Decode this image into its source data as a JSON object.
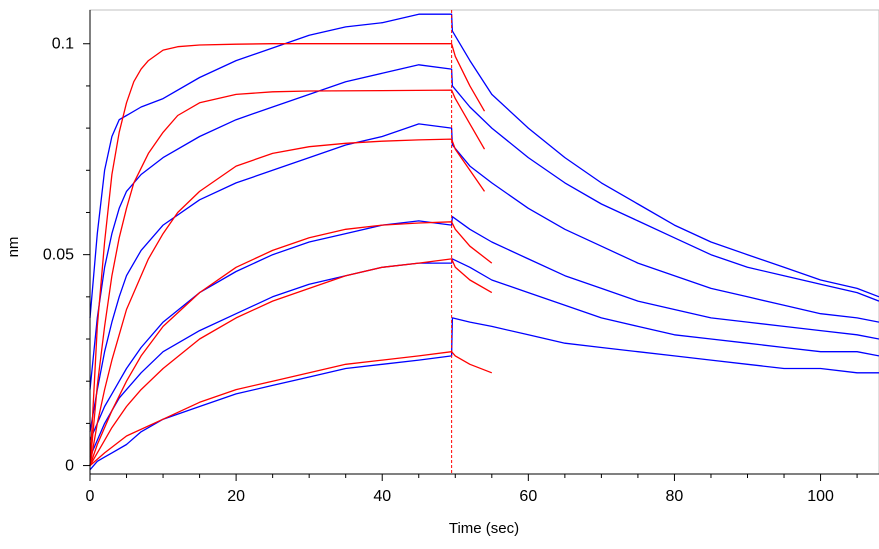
{
  "chart_data": {
    "type": "line",
    "title": "",
    "xlabel": "Time (sec)",
    "ylabel": "nm",
    "xlim": [
      0,
      108
    ],
    "ylim": [
      -0.002,
      0.108
    ],
    "x_ticks": [
      0,
      20,
      40,
      60,
      80,
      100
    ],
    "x_tick_labels": [
      "0",
      "20",
      "40",
      "60",
      "80",
      "100"
    ],
    "y_ticks": [
      0,
      0.05,
      0.1
    ],
    "y_tick_labels": [
      "0",
      "0.05",
      "0.1"
    ],
    "grid": false,
    "legend": "none",
    "dissociation_start": 49.5,
    "marker_color": "#ff0000",
    "colors": {
      "measured": "#0000ff",
      "fit": "#ff0000",
      "axis": "#000000",
      "frame": "#c0c0c0"
    },
    "series": [
      {
        "kind": "measured",
        "x": [
          0,
          1,
          2,
          3,
          4,
          5,
          7,
          10,
          15,
          20,
          25,
          30,
          35,
          40,
          45,
          49.5,
          49.6,
          52,
          55,
          60,
          65,
          70,
          75,
          80,
          85,
          90,
          95,
          100,
          105,
          108
        ],
        "y": [
          0.035,
          0.055,
          0.07,
          0.078,
          0.082,
          0.083,
          0.085,
          0.087,
          0.092,
          0.096,
          0.099,
          0.102,
          0.104,
          0.105,
          0.107,
          0.107,
          0.103,
          0.096,
          0.088,
          0.08,
          0.073,
          0.067,
          0.062,
          0.057,
          0.053,
          0.05,
          0.047,
          0.044,
          0.042,
          0.04
        ]
      },
      {
        "kind": "measured",
        "x": [
          0,
          1,
          2,
          3,
          4,
          5,
          7,
          10,
          15,
          20,
          25,
          30,
          35,
          40,
          45,
          49.5,
          49.6,
          52,
          55,
          60,
          65,
          70,
          75,
          80,
          85,
          90,
          95,
          100,
          105,
          108
        ],
        "y": [
          0.018,
          0.035,
          0.047,
          0.055,
          0.061,
          0.065,
          0.069,
          0.073,
          0.078,
          0.082,
          0.085,
          0.088,
          0.091,
          0.093,
          0.095,
          0.094,
          0.09,
          0.085,
          0.08,
          0.073,
          0.067,
          0.062,
          0.058,
          0.054,
          0.05,
          0.047,
          0.045,
          0.043,
          0.041,
          0.039
        ]
      },
      {
        "kind": "measured",
        "x": [
          0,
          1,
          2,
          3,
          4,
          5,
          7,
          10,
          15,
          20,
          25,
          30,
          35,
          40,
          45,
          49.5,
          49.6,
          52,
          55,
          60,
          65,
          70,
          75,
          80,
          85,
          90,
          95,
          100,
          105,
          108
        ],
        "y": [
          0.008,
          0.018,
          0.027,
          0.034,
          0.04,
          0.045,
          0.051,
          0.057,
          0.063,
          0.067,
          0.07,
          0.073,
          0.076,
          0.078,
          0.081,
          0.08,
          0.076,
          0.071,
          0.067,
          0.061,
          0.056,
          0.052,
          0.048,
          0.045,
          0.042,
          0.04,
          0.038,
          0.036,
          0.035,
          0.034
        ]
      },
      {
        "kind": "measured",
        "x": [
          0,
          1,
          2,
          3,
          4,
          5,
          7,
          10,
          15,
          20,
          25,
          30,
          35,
          40,
          45,
          49.5,
          49.6,
          52,
          55,
          60,
          65,
          70,
          75,
          80,
          85,
          90,
          95,
          100,
          105,
          108
        ],
        "y": [
          0.006,
          0.01,
          0.014,
          0.017,
          0.02,
          0.023,
          0.028,
          0.034,
          0.041,
          0.046,
          0.05,
          0.053,
          0.055,
          0.057,
          0.058,
          0.057,
          0.059,
          0.056,
          0.053,
          0.049,
          0.045,
          0.042,
          0.039,
          0.037,
          0.035,
          0.034,
          0.033,
          0.032,
          0.031,
          0.03
        ]
      },
      {
        "kind": "measured",
        "x": [
          0,
          1,
          2,
          3,
          4,
          5,
          7,
          10,
          15,
          20,
          25,
          30,
          35,
          40,
          45,
          49.5,
          49.6,
          52,
          55,
          60,
          65,
          70,
          75,
          80,
          85,
          90,
          95,
          100,
          105,
          108
        ],
        "y": [
          0.002,
          0.006,
          0.01,
          0.013,
          0.016,
          0.018,
          0.022,
          0.027,
          0.032,
          0.036,
          0.04,
          0.043,
          0.045,
          0.047,
          0.048,
          0.048,
          0.049,
          0.047,
          0.044,
          0.041,
          0.038,
          0.035,
          0.033,
          0.031,
          0.03,
          0.029,
          0.028,
          0.027,
          0.027,
          0.026
        ]
      },
      {
        "kind": "measured",
        "x": [
          0,
          1,
          2,
          3,
          5,
          7,
          10,
          15,
          20,
          25,
          30,
          35,
          40,
          45,
          49.5,
          49.6,
          52,
          55,
          60,
          65,
          70,
          75,
          80,
          85,
          90,
          95,
          100,
          105,
          108
        ],
        "y": [
          -0.001,
          0.001,
          0.002,
          0.003,
          0.005,
          0.008,
          0.011,
          0.014,
          0.017,
          0.019,
          0.021,
          0.023,
          0.024,
          0.025,
          0.026,
          0.035,
          0.034,
          0.033,
          0.031,
          0.029,
          0.028,
          0.027,
          0.026,
          0.025,
          0.024,
          0.023,
          0.023,
          0.022,
          0.022
        ]
      },
      {
        "kind": "fit",
        "x": [
          0,
          1,
          2,
          3,
          4,
          5,
          6,
          7,
          8,
          10,
          12,
          15,
          20,
          25,
          30,
          40,
          49.5,
          50,
          52,
          54
        ],
        "y": [
          0,
          0.033,
          0.053,
          0.069,
          0.079,
          0.086,
          0.091,
          0.094,
          0.096,
          0.0985,
          0.0993,
          0.0997,
          0.0999,
          0.1,
          0.1,
          0.1,
          0.1,
          0.097,
          0.09,
          0.084
        ]
      },
      {
        "kind": "fit",
        "x": [
          0,
          1,
          2,
          3,
          4,
          5,
          6,
          8,
          10,
          12,
          15,
          20,
          25,
          30,
          40,
          49.5,
          50,
          52,
          54
        ],
        "y": [
          0,
          0.019,
          0.033,
          0.045,
          0.054,
          0.061,
          0.067,
          0.074,
          0.079,
          0.083,
          0.086,
          0.088,
          0.0886,
          0.0888,
          0.0889,
          0.089,
          0.087,
          0.081,
          0.075
        ]
      },
      {
        "kind": "fit",
        "x": [
          0,
          1,
          2,
          3,
          4,
          5,
          6,
          8,
          10,
          12,
          15,
          20,
          25,
          30,
          35,
          40,
          45,
          49.5,
          50,
          52,
          54
        ],
        "y": [
          0,
          0.01,
          0.018,
          0.025,
          0.031,
          0.037,
          0.041,
          0.049,
          0.055,
          0.06,
          0.065,
          0.071,
          0.074,
          0.0756,
          0.0764,
          0.0769,
          0.0772,
          0.0774,
          0.075,
          0.07,
          0.065
        ]
      },
      {
        "kind": "fit",
        "x": [
          0,
          1,
          2,
          3,
          5,
          7,
          10,
          15,
          20,
          25,
          30,
          35,
          40,
          45,
          49.5,
          50,
          52,
          55
        ],
        "y": [
          0,
          0.005,
          0.009,
          0.013,
          0.02,
          0.026,
          0.033,
          0.041,
          0.047,
          0.051,
          0.054,
          0.056,
          0.057,
          0.0575,
          0.0578,
          0.056,
          0.052,
          0.048
        ]
      },
      {
        "kind": "fit",
        "x": [
          0,
          1,
          2,
          3,
          5,
          7,
          10,
          15,
          20,
          25,
          30,
          35,
          40,
          45,
          49.5,
          50,
          52,
          55
        ],
        "y": [
          0,
          0.003,
          0.006,
          0.009,
          0.014,
          0.018,
          0.023,
          0.03,
          0.035,
          0.039,
          0.042,
          0.045,
          0.047,
          0.048,
          0.049,
          0.047,
          0.044,
          0.041
        ]
      },
      {
        "kind": "fit",
        "x": [
          0,
          2,
          5,
          10,
          15,
          20,
          25,
          30,
          35,
          40,
          45,
          49.5,
          50,
          52,
          55
        ],
        "y": [
          0,
          0.003,
          0.007,
          0.011,
          0.015,
          0.018,
          0.02,
          0.022,
          0.024,
          0.025,
          0.026,
          0.027,
          0.026,
          0.024,
          0.022
        ]
      }
    ]
  }
}
